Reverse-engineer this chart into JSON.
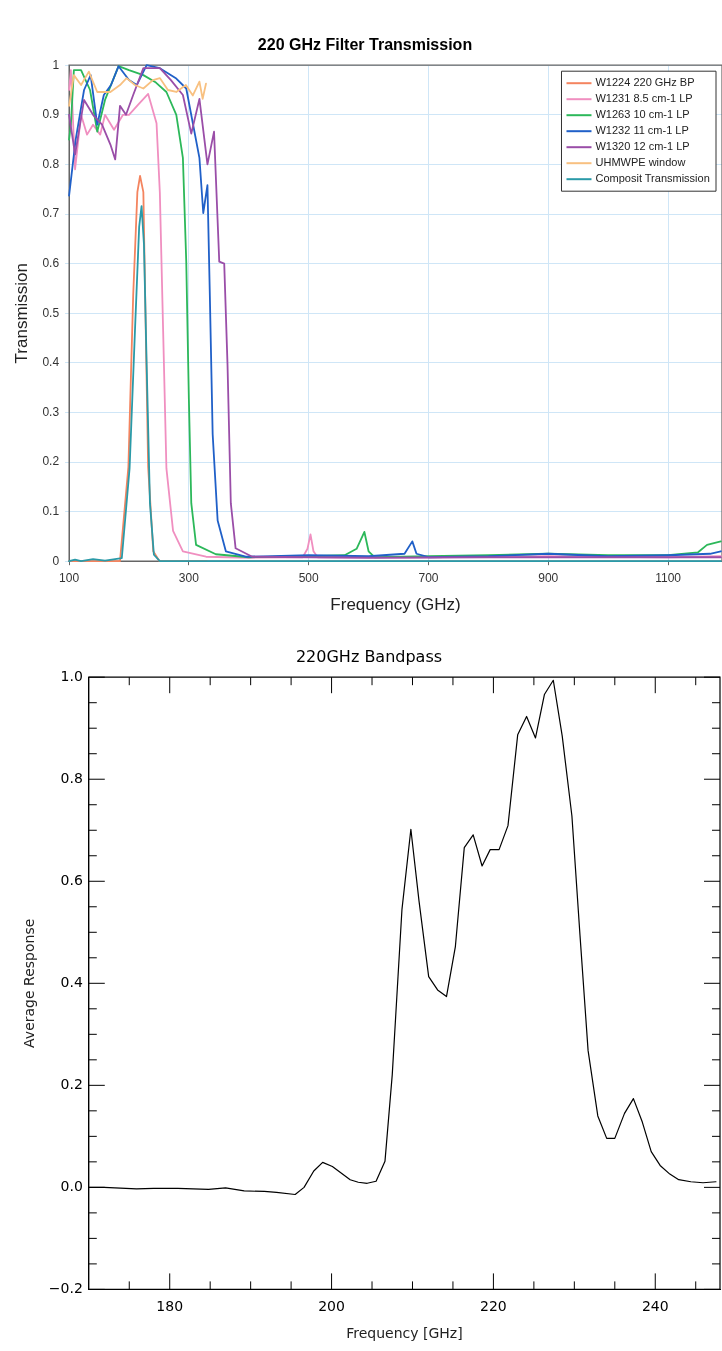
{
  "chart_data": [
    {
      "type": "line",
      "title": "220 GHz Filter Transmission",
      "xlabel": "Frequency (GHz)",
      "ylabel": "Transmission",
      "xlim": [
        100,
        1190
      ],
      "xticks": [
        100,
        300,
        500,
        700,
        900,
        1100
      ],
      "ylim": [
        0,
        1
      ],
      "yticks": [
        0,
        0.1,
        0.2,
        0.3,
        0.4,
        0.5,
        0.6,
        0.7,
        0.8,
        0.9,
        1
      ],
      "grid": true,
      "legend": "top right",
      "marker": "none",
      "line_style": "solid",
      "series": [
        {
          "name": "W1224 220 GHz BP",
          "color": "#f4845f",
          "x": [
            100,
            140,
            185,
            199,
            207,
            214,
            218.5,
            224,
            227,
            232,
            240.5,
            251,
            330
          ],
          "values": [
            0,
            0,
            0,
            0.19,
            0.535,
            0.744,
            0.777,
            0.744,
            0.535,
            0.19,
            0.02,
            0,
            0
          ]
        },
        {
          "name": "W1231 8.5 cm-1 LP",
          "color": "#f08fc0",
          "x": [
            100,
            103,
            110,
            120,
            130,
            140,
            152,
            160,
            175,
            190,
            200,
            215,
            232,
            246,
            251.5,
            257,
            262.5,
            273.6,
            290,
            328.6,
            400,
            490,
            498,
            503,
            508,
            515,
            700,
            900,
            1100,
            1188
          ],
          "values": [
            0.95,
            0.99,
            0.79,
            0.9,
            0.86,
            0.88,
            0.86,
            0.9,
            0.87,
            0.9,
            0.9,
            0.92,
            0.942,
            0.883,
            0.744,
            0.465,
            0.187,
            0.061,
            0.02,
            0.009,
            0.007,
            0.008,
            0.025,
            0.054,
            0.02,
            0.008,
            0.008,
            0.01,
            0.008,
            0.01
          ]
        },
        {
          "name": "W1263 10 cm-1 LP",
          "color": "#2cb85a",
          "x": [
            100,
            103,
            108,
            120,
            135,
            147,
            160,
            182.6,
            200,
            224,
            245,
            262.5,
            279,
            290,
            295.6,
            300,
            304,
            312,
            345,
            400,
            500,
            560,
            580,
            593,
            600,
            610,
            700,
            800,
            900,
            1000,
            1100,
            1150,
            1165,
            1188
          ],
          "values": [
            0.85,
            0.88,
            0.99,
            0.99,
            0.95,
            0.866,
            0.93,
            0.998,
            0.99,
            0.98,
            0.965,
            0.946,
            0.9,
            0.813,
            0.604,
            0.326,
            0.117,
            0.033,
            0.014,
            0.008,
            0.01,
            0.012,
            0.025,
            0.059,
            0.02,
            0.008,
            0.01,
            0.012,
            0.015,
            0.012,
            0.012,
            0.018,
            0.033,
            0.04
          ]
        },
        {
          "name": "W1232 11 cm-1 LP",
          "color": "#2060c8",
          "x": [
            100,
            111,
            125,
            136,
            147,
            158,
            170,
            182.6,
            200,
            213,
            229.5,
            251.5,
            279,
            295.6,
            306.6,
            317.6,
            324,
            331,
            335,
            339.7,
            348,
            361.7,
            394.8,
            500,
            600,
            660,
            673,
            680,
            700,
            800,
            900,
            1000,
            1100,
            1170,
            1188
          ],
          "values": [
            0.737,
            0.85,
            0.95,
            0.98,
            0.88,
            0.94,
            0.96,
            0.998,
            0.97,
            0.96,
            1,
            0.994,
            0.973,
            0.953,
            0.883,
            0.813,
            0.702,
            0.758,
            0.535,
            0.256,
            0.082,
            0.02,
            0.009,
            0.012,
            0.01,
            0.015,
            0.04,
            0.015,
            0.008,
            0.01,
            0.015,
            0.01,
            0.012,
            0.015,
            0.02
          ]
        },
        {
          "name": "W1320 12 cm-1 LP",
          "color": "#9a4ea8",
          "x": [
            100,
            110,
            125,
            140,
            155,
            169,
            177,
            185,
            195,
            207,
            224,
            251.5,
            270,
            290,
            304,
            317.6,
            331,
            342,
            350.7,
            359,
            364.5,
            370,
            378,
            405.8,
            600,
            800,
            1000,
            1188
          ],
          "values": [
            0.9,
            0.82,
            0.93,
            0.9,
            0.88,
            0.84,
            0.81,
            0.918,
            0.9,
            0.94,
            0.994,
            0.994,
            0.97,
            0.94,
            0.862,
            0.932,
            0.8,
            0.866,
            0.604,
            0.6,
            0.396,
            0.117,
            0.026,
            0.009,
            0.007,
            0.008,
            0.008,
            0.008
          ]
        },
        {
          "name": "UHMWPE window",
          "color": "#f8c080",
          "x": [
            100,
            108,
            120,
            133,
            147,
            169,
            185,
            196,
            210,
            224,
            240,
            251.5,
            265,
            279,
            295,
            306.6,
            317.6,
            323,
            328.6
          ],
          "values": [
            0.918,
            0.98,
            0.96,
            0.987,
            0.946,
            0.946,
            0.96,
            0.974,
            0.96,
            0.953,
            0.97,
            0.974,
            0.95,
            0.946,
            0.96,
            0.939,
            0.967,
            0.932,
            0.963
          ]
        },
        {
          "name": "Composit Transmission",
          "color": "#2a9aa8",
          "x": [
            100,
            110,
            120,
            140,
            160,
            188,
            201,
            210,
            217,
            221,
            225,
            229.5,
            235,
            241.6,
            251.5,
            400,
            700,
            1000,
            1188
          ],
          "values": [
            0,
            0.003,
            0,
            0.004,
            0.001,
            0.006,
            0.187,
            0.465,
            0.674,
            0.716,
            0.639,
            0.396,
            0.117,
            0.013,
            0,
            0,
            0,
            0,
            0
          ]
        }
      ]
    },
    {
      "type": "line",
      "title": "220GHz Bandpass",
      "xlabel": "Frequency [GHz]",
      "ylabel": "Average Response",
      "xlim": [
        170,
        248
      ],
      "xticks": [
        {
          "value": 175,
          "label": null
        },
        180,
        {
          "value": 185,
          "label": null
        },
        {
          "value": 190,
          "label": null
        },
        {
          "value": 195,
          "label": null
        },
        200,
        {
          "value": 205,
          "label": null
        },
        {
          "value": 210,
          "label": null
        },
        {
          "value": 215,
          "label": null
        },
        220,
        {
          "value": 225,
          "label": null
        },
        {
          "value": 230,
          "label": null
        },
        {
          "value": 235,
          "label": null
        },
        240,
        {
          "value": 245,
          "label": null
        }
      ],
      "ylim": [
        -0.2,
        1
      ],
      "yticks": [
        {
          "value": -0.2,
          "label": "−0.2"
        },
        {
          "value": -0.15,
          "label": null
        },
        {
          "value": -0.1,
          "label": null
        },
        {
          "value": -0.05,
          "label": null
        },
        {
          "value": 0,
          "label": "0.0"
        },
        {
          "value": 0.05,
          "label": null
        },
        {
          "value": 0.1,
          "label": null
        },
        {
          "value": 0.15,
          "label": null
        },
        0.2,
        {
          "value": 0.25,
          "label": null
        },
        {
          "value": 0.3,
          "label": null
        },
        {
          "value": 0.35,
          "label": null
        },
        0.4,
        {
          "value": 0.45,
          "label": null
        },
        {
          "value": 0.5,
          "label": null
        },
        {
          "value": 0.55,
          "label": null
        },
        0.6,
        {
          "value": 0.65,
          "label": null
        },
        {
          "value": 0.7,
          "label": null
        },
        {
          "value": 0.75,
          "label": null
        },
        0.8,
        {
          "value": 0.85,
          "label": null
        },
        {
          "value": 0.9,
          "label": null
        },
        {
          "value": 0.95,
          "label": null
        },
        {
          "value": 1,
          "label": "1.0"
        }
      ],
      "marker": "none",
      "line_style": "solid",
      "color": "#000000",
      "x": [
        170,
        171.9,
        175.9,
        178,
        181,
        184.8,
        186.9,
        189.2,
        191.7,
        193.2,
        195.5,
        196.6,
        197.8,
        198.9,
        200.1,
        202.3,
        203.3,
        204.4,
        205.5,
        206.6,
        207.5,
        208.7,
        209.8,
        210.8,
        212,
        213.1,
        214.2,
        215.3,
        216.4,
        217.5,
        218.6,
        219.6,
        220.7,
        221.8,
        223,
        224.1,
        225.2,
        226.3,
        227.4,
        228.5,
        229.7,
        230.7,
        231.7,
        232.9,
        234,
        235,
        236.2,
        237.3,
        238.4,
        239.5,
        240.6,
        241.8,
        242.9,
        244.4,
        245.9,
        247.5
      ],
      "values": [
        0,
        0,
        -0.003,
        -0.002,
        -0.002,
        -0.004,
        -0.001,
        -0.007,
        -0.008,
        -0.01,
        -0.014,
        0,
        0.032,
        0.049,
        0.041,
        0.015,
        0.01,
        0.008,
        0.012,
        0.051,
        0.221,
        0.545,
        0.702,
        0.562,
        0.413,
        0.387,
        0.374,
        0.472,
        0.666,
        0.691,
        0.63,
        0.662,
        0.662,
        0.709,
        0.887,
        0.923,
        0.881,
        0.966,
        0.994,
        0.885,
        0.728,
        0.494,
        0.268,
        0.14,
        0.096,
        0.096,
        0.145,
        0.174,
        0.128,
        0.07,
        0.043,
        0.026,
        0.015,
        0.011,
        0.009,
        0.011
      ]
    }
  ]
}
